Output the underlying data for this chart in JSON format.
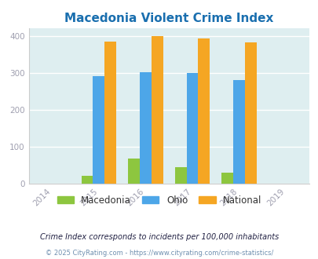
{
  "title": "Macedonia Violent Crime Index",
  "years": [
    2014,
    2015,
    2016,
    2017,
    2018,
    2019
  ],
  "data": {
    "Macedonia": [
      null,
      22,
      68,
      46,
      30,
      null
    ],
    "Ohio": [
      null,
      292,
      302,
      300,
      281,
      null
    ],
    "National": [
      null,
      384,
      399,
      394,
      382,
      null
    ]
  },
  "colors": {
    "Macedonia": "#8dc63f",
    "Ohio": "#4da6e8",
    "National": "#f5a623"
  },
  "bar_width": 0.25,
  "xlim": [
    2013.5,
    2019.5
  ],
  "ylim": [
    0,
    420
  ],
  "yticks": [
    0,
    100,
    200,
    300,
    400
  ],
  "title_color": "#1a6faf",
  "title_fontsize": 11,
  "axis_bg_color": "#deeef0",
  "fig_bg_color": "#ffffff",
  "footnote1": "Crime Index corresponds to incidents per 100,000 inhabitants",
  "footnote2": "© 2025 CityRating.com - https://www.cityrating.com/crime-statistics/",
  "legend_labels": [
    "Macedonia",
    "Ohio",
    "National"
  ],
  "tick_label_color": "#a0a0b0",
  "grid_color": "#ffffff",
  "footnote1_color": "#222244",
  "footnote2_color": "#7090b0"
}
